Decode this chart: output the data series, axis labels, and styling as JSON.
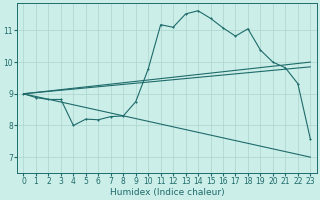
{
  "xlabel": "Humidex (Indice chaleur)",
  "xlim": [
    -0.5,
    23.5
  ],
  "ylim": [
    6.5,
    11.85
  ],
  "yticks": [
    7,
    8,
    9,
    10,
    11
  ],
  "xticks": [
    0,
    1,
    2,
    3,
    4,
    5,
    6,
    7,
    8,
    9,
    10,
    11,
    12,
    13,
    14,
    15,
    16,
    17,
    18,
    19,
    20,
    21,
    22,
    23
  ],
  "bg_color": "#cceee8",
  "line_color": "#1e6b6b",
  "grid_color": "#aad4cc",
  "series1_x": [
    0,
    1,
    2,
    3,
    4,
    5,
    6,
    7,
    8,
    9,
    10,
    11,
    12,
    13,
    14,
    15,
    16,
    17,
    18,
    19,
    20,
    21,
    22,
    23
  ],
  "series1_y": [
    9.0,
    8.88,
    8.82,
    8.82,
    8.0,
    8.2,
    8.18,
    8.28,
    8.3,
    8.75,
    9.78,
    11.18,
    11.1,
    11.52,
    11.62,
    11.38,
    11.08,
    10.82,
    11.05,
    10.38,
    10.0,
    9.82,
    9.32,
    7.58
  ],
  "series2_x": [
    0,
    23
  ],
  "series2_y": [
    9.0,
    10.0
  ],
  "series3_x": [
    0,
    23
  ],
  "series3_y": [
    9.0,
    9.85
  ],
  "series4_x": [
    0,
    23
  ],
  "series4_y": [
    9.0,
    7.0
  ],
  "line_width": 0.8,
  "marker_size": 2.0,
  "tick_fontsize": 5.5,
  "xlabel_fontsize": 6.5
}
